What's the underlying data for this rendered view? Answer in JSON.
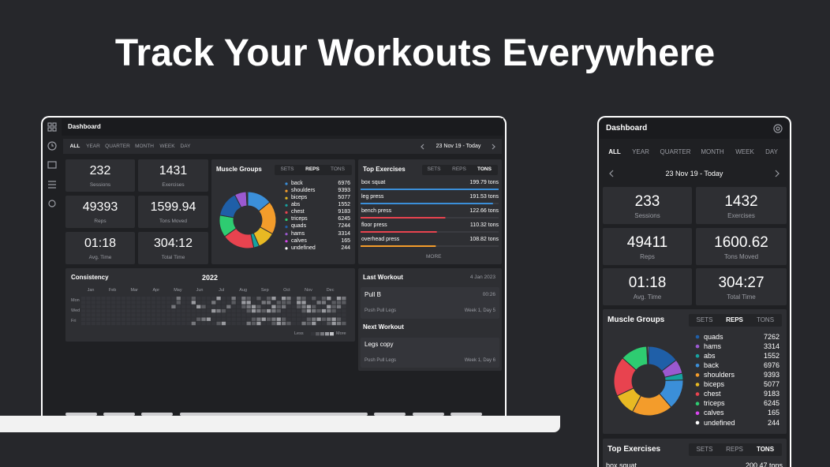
{
  "headline": "Track Your Workouts Everywhere",
  "laptop": {
    "title": "Dashboard",
    "periods": [
      "ALL",
      "YEAR",
      "QUARTER",
      "MONTH",
      "WEEK",
      "DAY"
    ],
    "date_range": "23 Nov 19 - Today",
    "stats": [
      {
        "value": "232",
        "label": "Sessions"
      },
      {
        "value": "1431",
        "label": "Exercises"
      },
      {
        "value": "49393",
        "label": "Reps"
      },
      {
        "value": "1599.94",
        "label": "Tons Moved"
      },
      {
        "value": "01:18",
        "label": "Avg. Time"
      },
      {
        "value": "304:12",
        "label": "Total Time"
      }
    ],
    "muscle_groups": {
      "title": "Muscle Groups",
      "tabs": [
        "SETS",
        "REPS",
        "TONS"
      ],
      "chart_data": {
        "type": "pie",
        "categories": [
          "back",
          "shoulders",
          "biceps",
          "abs",
          "chest",
          "triceps",
          "quads",
          "hams",
          "calves",
          "undefined"
        ],
        "values": [
          6976,
          9393,
          5077,
          1552,
          9183,
          6245,
          7244,
          3314,
          165,
          244
        ],
        "colors": [
          "#3b8fd9",
          "#f39c2b",
          "#e8b923",
          "#17a2a0",
          "#e8434f",
          "#2ecc71",
          "#1f5fa8",
          "#9b59d0",
          "#d946ef",
          "#ffffff"
        ]
      }
    },
    "top_exercises": {
      "title": "Top Exercises",
      "tabs": [
        "SETS",
        "REPS",
        "TONS"
      ],
      "more": "MORE",
      "items": [
        {
          "name": "box squat",
          "value": 199.79,
          "value_label": "199.79 tons",
          "color": "#3b8fd9"
        },
        {
          "name": "leg press",
          "value": 191.53,
          "value_label": "191.53 tons",
          "color": "#3b8fd9"
        },
        {
          "name": "bench press",
          "value": 122.66,
          "value_label": "122.66 tons",
          "color": "#e8434f"
        },
        {
          "name": "floor press",
          "value": 110.32,
          "value_label": "110.32 tons",
          "color": "#e8434f"
        },
        {
          "name": "overhead press",
          "value": 108.82,
          "value_label": "108.82 tons",
          "color": "#f39c2b"
        }
      ]
    },
    "consistency": {
      "title": "Consistency",
      "year": "2022",
      "months": [
        "Jan",
        "Feb",
        "Mar",
        "Apr",
        "May",
        "Jun",
        "Jul",
        "Aug",
        "Sep",
        "Oct",
        "Nov",
        "Dec"
      ],
      "days": [
        "Mon",
        "Wed",
        "Fri"
      ],
      "legend_low": "Less",
      "legend_high": "More"
    },
    "last_workout": {
      "title": "Last Workout",
      "date": "4 Jan 2023",
      "name": "Pull B",
      "time": "00:26",
      "program": "Push Pull Legs",
      "schedule": "Week 1, Day 5"
    },
    "next_workout": {
      "title": "Next Workout",
      "name": "Legs copy",
      "program": "Push Pull Legs",
      "schedule": "Week 1, Day 6"
    }
  },
  "phone": {
    "title": "Dashboard",
    "periods": [
      "ALL",
      "YEAR",
      "QUARTER",
      "MONTH",
      "WEEK",
      "DAY"
    ],
    "date_range": "23 Nov 19 - Today",
    "stats": [
      {
        "value": "233",
        "label": "Sessions"
      },
      {
        "value": "1432",
        "label": "Exercises"
      },
      {
        "value": "49411",
        "label": "Reps"
      },
      {
        "value": "1600.62",
        "label": "Tons Moved"
      },
      {
        "value": "01:18",
        "label": "Avg. Time"
      },
      {
        "value": "304:27",
        "label": "Total Time"
      }
    ],
    "muscle_groups": {
      "title": "Muscle Groups",
      "tabs": [
        "SETS",
        "REPS",
        "TONS"
      ],
      "chart_data": {
        "type": "pie",
        "categories": [
          "quads",
          "hams",
          "abs",
          "back",
          "shoulders",
          "biceps",
          "chest",
          "triceps",
          "calves",
          "undefined"
        ],
        "values": [
          7262,
          3314,
          1552,
          6976,
          9393,
          5077,
          9183,
          6245,
          165,
          244
        ],
        "colors": [
          "#1f5fa8",
          "#9b59d0",
          "#17a2a0",
          "#3b8fd9",
          "#f39c2b",
          "#e8b923",
          "#e8434f",
          "#2ecc71",
          "#d946ef",
          "#ffffff"
        ]
      }
    },
    "top_exercises": {
      "title": "Top Exercises",
      "tabs": [
        "SETS",
        "REPS",
        "TONS"
      ],
      "items": [
        {
          "name": "box squat",
          "amount": "200.47 tons"
        }
      ]
    }
  }
}
